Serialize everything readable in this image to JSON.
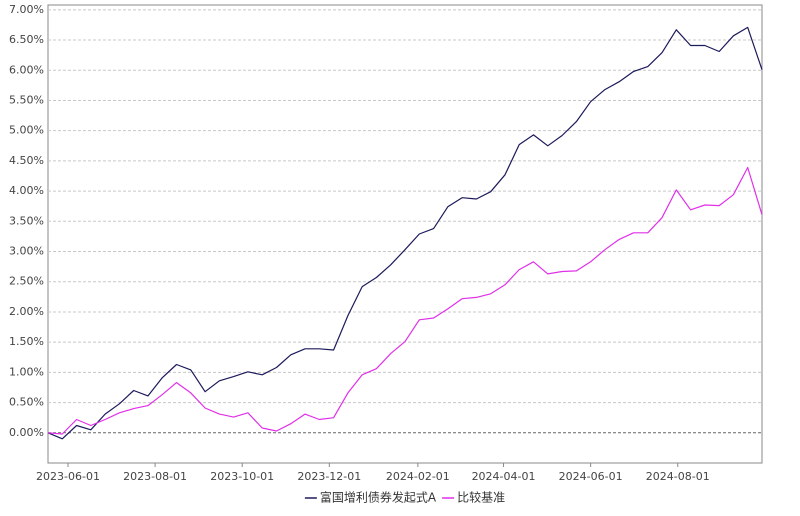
{
  "chart_data": {
    "type": "line",
    "x": [
      "2023-05-18",
      "2023-05-28",
      "2023-06-07",
      "2023-06-17",
      "2023-06-27",
      "2023-07-07",
      "2023-07-17",
      "2023-07-27",
      "2023-08-06",
      "2023-08-16",
      "2023-08-26",
      "2023-09-05",
      "2023-09-15",
      "2023-09-25",
      "2023-10-05",
      "2023-10-15",
      "2023-10-25",
      "2023-11-04",
      "2023-11-14",
      "2023-11-24",
      "2023-12-04",
      "2023-12-14",
      "2023-12-24",
      "2024-01-03",
      "2024-01-13",
      "2024-01-23",
      "2024-02-02",
      "2024-02-12",
      "2024-02-22",
      "2024-03-03",
      "2024-03-13",
      "2024-03-23",
      "2024-04-02",
      "2024-04-12",
      "2024-04-22",
      "2024-05-02",
      "2024-05-12",
      "2024-05-22",
      "2024-06-01",
      "2024-06-11",
      "2024-06-21",
      "2024-07-01",
      "2024-07-11",
      "2024-07-21",
      "2024-07-31",
      "2024-08-10",
      "2024-08-20",
      "2024-08-30",
      "2024-09-09",
      "2024-09-19",
      "2024-09-29"
    ],
    "series": [
      {
        "name": "富国增利债券发起式A",
        "color": "#1c1a5a",
        "values": [
          0,
          -0.1,
          0.12,
          0.05,
          0.31,
          0.48,
          0.7,
          0.61,
          0.91,
          1.13,
          1.04,
          0.68,
          0.86,
          0.93,
          1.01,
          0.96,
          1.08,
          1.29,
          1.39,
          1.39,
          1.37,
          1.94,
          2.42,
          2.57,
          2.78,
          3.03,
          3.29,
          3.38,
          3.74,
          3.89,
          3.87,
          3.99,
          4.27,
          4.77,
          4.93,
          4.75,
          4.92,
          5.15,
          5.48,
          5.68,
          5.81,
          5.98,
          6.06,
          6.29,
          6.67,
          6.41,
          6.41,
          6.31,
          6.57,
          6.71,
          6.01
        ]
      },
      {
        "name": "比较基准",
        "color": "#e030e8",
        "values": [
          0,
          -0.02,
          0.22,
          0.12,
          0.22,
          0.33,
          0.4,
          0.45,
          0.63,
          0.83,
          0.66,
          0.41,
          0.31,
          0.26,
          0.33,
          0.08,
          0.03,
          0.15,
          0.31,
          0.22,
          0.25,
          0.66,
          0.96,
          1.06,
          1.31,
          1.51,
          1.87,
          1.9,
          2.05,
          2.22,
          2.24,
          2.3,
          2.45,
          2.7,
          2.83,
          2.63,
          2.67,
          2.68,
          2.83,
          3.03,
          3.2,
          3.31,
          3.31,
          3.56,
          4.02,
          3.69,
          3.77,
          3.76,
          3.94,
          4.39,
          3.61
        ]
      }
    ],
    "xlim": [
      "2023-05-18",
      "2024-09-29"
    ],
    "xticks": [
      "2023-06-01",
      "2023-08-01",
      "2023-10-01",
      "2023-12-01",
      "2024-02-01",
      "2024-04-01",
      "2024-06-01",
      "2024-08-01"
    ],
    "ylim": [
      -0.5,
      7.08
    ],
    "yticks": [
      {
        "value": 0,
        "label": "0.00%"
      },
      {
        "value": 0.5,
        "label": "0.50%"
      },
      {
        "value": 1,
        "label": "1.00%"
      },
      {
        "value": 1.5,
        "label": "1.50%"
      },
      {
        "value": 2,
        "label": "2.00%"
      },
      {
        "value": 2.5,
        "label": "2.50%"
      },
      {
        "value": 3,
        "label": "3.00%"
      },
      {
        "value": 3.5,
        "label": "3.50%"
      },
      {
        "value": 4,
        "label": "4.00%"
      },
      {
        "value": 4.5,
        "label": "4.50%"
      },
      {
        "value": 5,
        "label": "5.00%"
      },
      {
        "value": 5.5,
        "label": "5.50%"
      },
      {
        "value": 6,
        "label": "6.00%"
      },
      {
        "value": 6.5,
        "label": "6.50%"
      },
      {
        "value": 7,
        "label": "7.00%"
      }
    ],
    "grid": true
  }
}
